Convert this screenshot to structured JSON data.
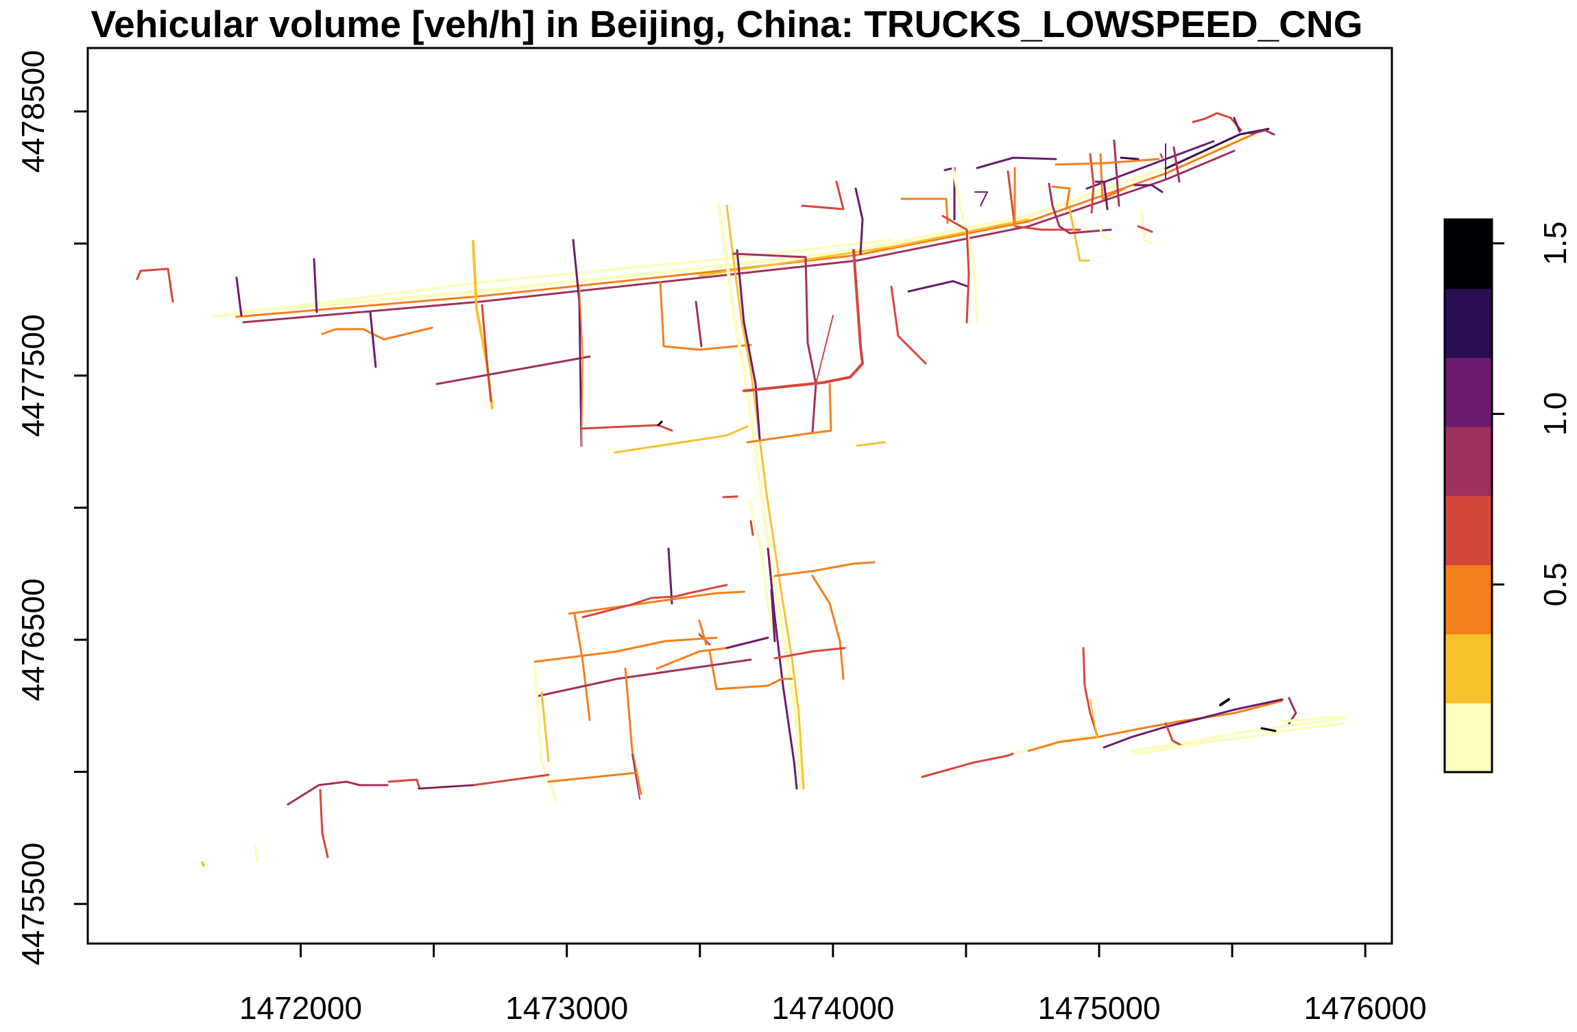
{
  "title": "Vehicular volume [veh/h] in Beijing, China: TRUCKS_LOWSPEED_CNG",
  "map": {
    "x_ticks": [
      "1472000",
      "1473000",
      "1474000",
      "1475000",
      "1476000"
    ],
    "y_ticks": [
      "4475500",
      "4476500",
      "4477500",
      "4478500"
    ],
    "x_tick_values": [
      1472000,
      1472500,
      1473000,
      1473500,
      1474000,
      1474500,
      1475000,
      1475500,
      1476000
    ],
    "y_tick_values": [
      4475500,
      4476000,
      4476500,
      4477000,
      4477500,
      4478000,
      4478500
    ],
    "x_range": [
      1471200,
      1476100
    ],
    "y_range": [
      4475350,
      4478740
    ],
    "road_palette": [
      "#FCFDBF",
      "#F8C12C",
      "#F37F1A",
      "#D6453C",
      "#A0305F",
      "#6C1A6E",
      "#360D5C",
      "#000004"
    ]
  },
  "legend": {
    "tick_labels": [
      "0.5",
      "1.0",
      "1.5"
    ],
    "tick_values": [
      0.5,
      1.0,
      1.5
    ],
    "range": [
      -0.05,
      1.57
    ],
    "bins": [
      {
        "color": "#FCFDBF"
      },
      {
        "color": "#F8C12C"
      },
      {
        "color": "#F37F1A"
      },
      {
        "color": "#D6453C"
      },
      {
        "color": "#A0305F"
      },
      {
        "color": "#6C1A6E"
      },
      {
        "color": "#2A0E52"
      },
      {
        "color": "#000004"
      }
    ]
  }
}
